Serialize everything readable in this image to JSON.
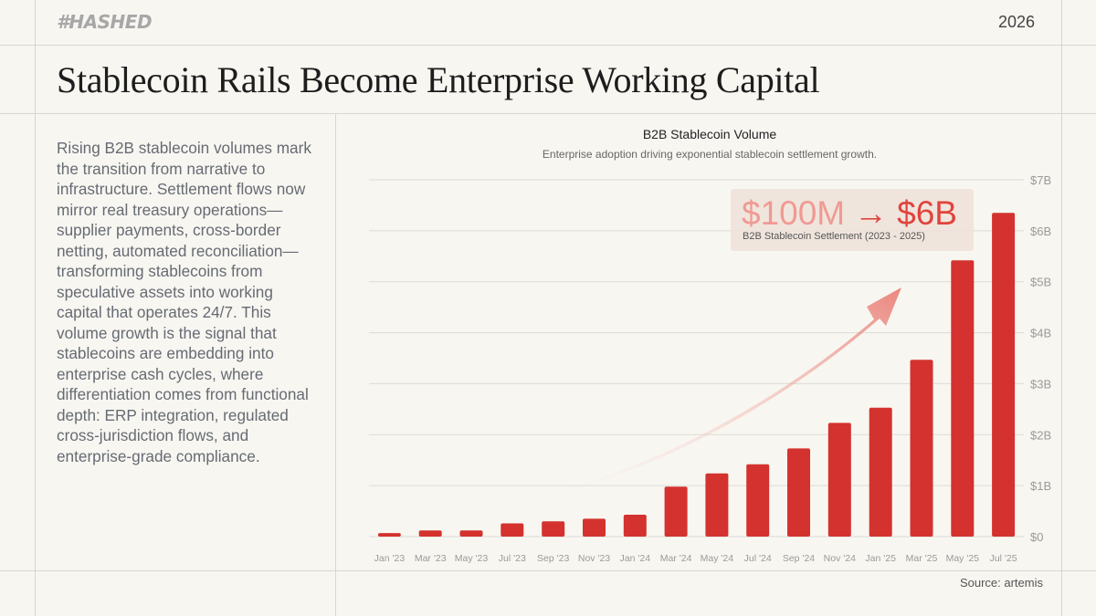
{
  "header": {
    "logo_text": "#HASHED",
    "year": "2026",
    "title": "Stablecoin Rails Become Enterprise Working Capital"
  },
  "body": {
    "description": "Rising B2B stablecoin volumes mark the transition from narrative to infrastructure. Settlement flows now mirror real treasury operations—supplier payments, cross-border netting, automated reconciliation—transforming stablecoins from speculative assets into working capital that operates 24/7. This volume growth is the signal that stablecoins are embedding into enterprise cash cycles, where differentiation comes from functional depth: ERP integration, regulated cross-jurisdiction flows, and enterprise-grade compliance."
  },
  "source": "Source: artemis",
  "colors": {
    "bar": "#d4322e",
    "annotation_from": "#ef9a93",
    "annotation_to": "#e0443c",
    "annotation_bg": "#efe2d9"
  },
  "chart_data": {
    "type": "bar",
    "title": "B2B Stablecoin Volume",
    "subtitle": "Enterprise adoption driving exponential stablecoin settlement growth.",
    "xlabel": "",
    "ylabel": "",
    "ylim": [
      0,
      7
    ],
    "y_unit": "billions USD",
    "y_ticks": [
      0,
      1,
      2,
      3,
      4,
      5,
      6,
      7
    ],
    "y_tick_labels": [
      "$0",
      "$1B",
      "$2B",
      "$3B",
      "$4B",
      "$5B",
      "$6B",
      "$7B"
    ],
    "y_axis_position": "right",
    "grid": true,
    "categories": [
      "Jan '23",
      "Mar '23",
      "May '23",
      "Jul '23",
      "Sep '23",
      "Nov '23",
      "Jan '24",
      "Mar '24",
      "May '24",
      "Jul '24",
      "Sep '24",
      "Nov '24",
      "Jan '25",
      "Mar '25",
      "May '25",
      "Jul '25"
    ],
    "values": [
      0.07,
      0.12,
      0.12,
      0.26,
      0.3,
      0.35,
      0.43,
      0.98,
      1.24,
      1.42,
      1.73,
      2.23,
      2.53,
      3.47,
      5.42,
      6.35
    ],
    "annotation": {
      "from": "$100M",
      "arrow": "→",
      "to": "$6B",
      "caption": "B2B Stablecoin Settlement (2023 - 2025)"
    }
  }
}
